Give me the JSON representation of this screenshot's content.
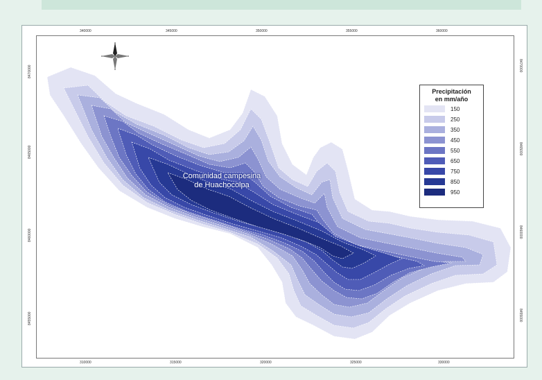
{
  "map": {
    "community_label_line1": "Comunidad campesina",
    "community_label_line2": "de Huachocolpa",
    "top_ticks": [
      "340000",
      "345000",
      "350000",
      "355000",
      "360000"
    ],
    "bottom_ticks": [
      "310000",
      "315000",
      "320000",
      "325000",
      "330000"
    ],
    "left_ticks": [
      "8470000",
      "8465000",
      "8460000",
      "8455000"
    ],
    "right_ticks": [
      "8470000",
      "8465000",
      "8460000",
      "8455000"
    ]
  },
  "legend": {
    "title_line1": "Precipitación",
    "title_line2": "en mm/año",
    "items": [
      {
        "value": "150",
        "color": "#e3e4f4"
      },
      {
        "value": "250",
        "color": "#c8cbea"
      },
      {
        "value": "350",
        "color": "#aab0de"
      },
      {
        "value": "450",
        "color": "#8c93d1"
      },
      {
        "value": "550",
        "color": "#6c76c4"
      },
      {
        "value": "650",
        "color": "#4f5cb7"
      },
      {
        "value": "750",
        "color": "#3848a8"
      },
      {
        "value": "850",
        "color": "#263994"
      },
      {
        "value": "950",
        "color": "#1c2c7e"
      }
    ]
  }
}
